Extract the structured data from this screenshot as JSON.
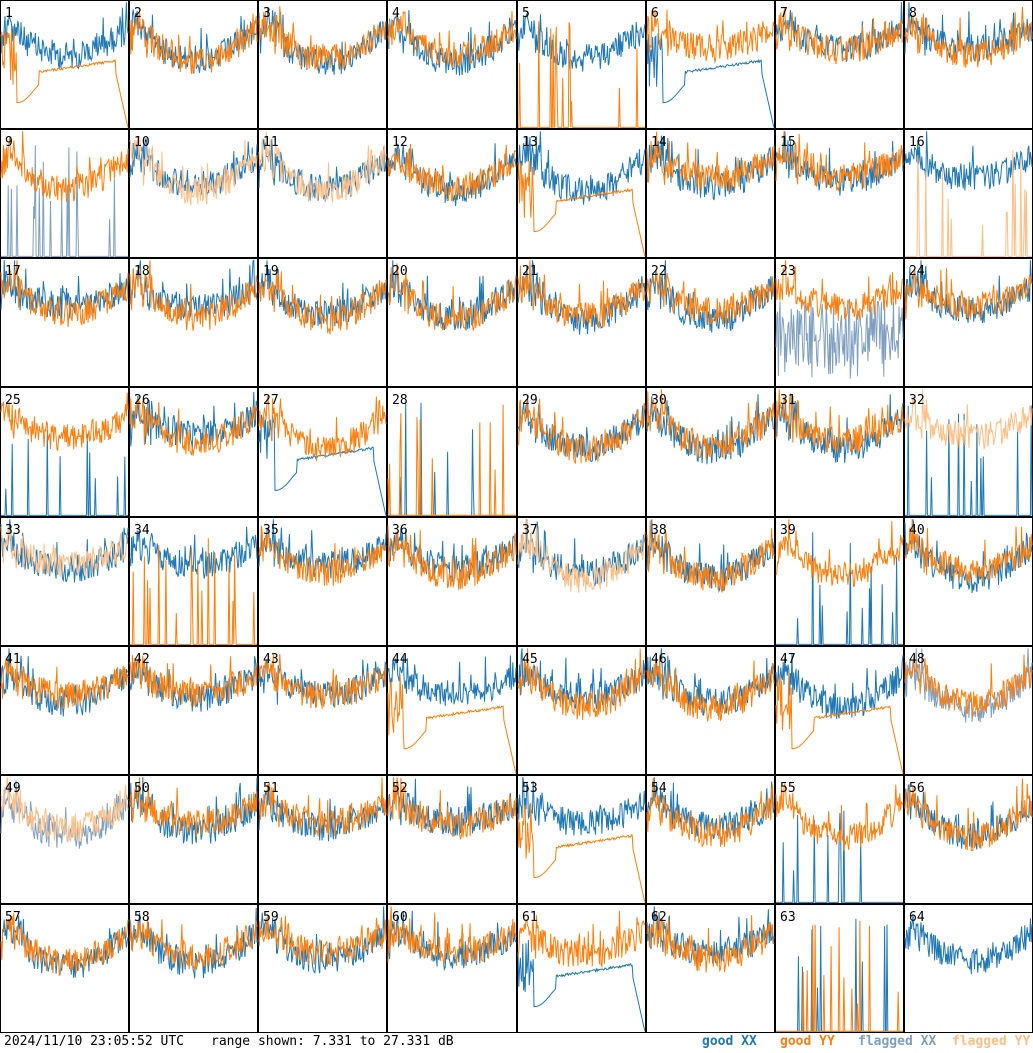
{
  "chart_data": {
    "type": "line",
    "panel_count": 64,
    "panel_labels": [
      "1",
      "2",
      "3",
      "4",
      "5",
      "6",
      "7",
      "8",
      "9",
      "10",
      "11",
      "12",
      "13",
      "14",
      "15",
      "16",
      "17",
      "18",
      "19",
      "20",
      "21",
      "22",
      "23",
      "24",
      "25",
      "26",
      "27",
      "28",
      "29",
      "30",
      "31",
      "32",
      "33",
      "34",
      "35",
      "36",
      "37",
      "38",
      "39",
      "40",
      "41",
      "42",
      "43",
      "44",
      "45",
      "46",
      "47",
      "48",
      "49",
      "50",
      "51",
      "52",
      "53",
      "54",
      "55",
      "56",
      "57",
      "58",
      "59",
      "60",
      "61",
      "62",
      "63",
      "64"
    ],
    "ylim": [
      7.331,
      27.331
    ],
    "series": [
      {
        "name": "good XX",
        "color": "#1f77b4"
      },
      {
        "name": "good YY",
        "color": "#ff7f0e"
      },
      {
        "name": "flagged XX",
        "color": "#7f9fbf"
      },
      {
        "name": "flagged YY",
        "color": "#ffbf87"
      }
    ],
    "panels": {
      "1": {
        "xx": "normal",
        "yy": "dip"
      },
      "5": {
        "xx": "normal",
        "yy": "spikes"
      },
      "6": {
        "xx": "dip",
        "yy": "normal"
      },
      "9": {
        "xx": "spikes_flagged",
        "yy": "normal"
      },
      "10": {
        "xx": "normal",
        "yy": "flagged"
      },
      "11": {
        "xx": "normal",
        "yy": "flagged"
      },
      "13": {
        "xx": "normal",
        "yy": "dip"
      },
      "16": {
        "xx": "normal",
        "yy": "spikes_flagged"
      },
      "23": {
        "xx": "noisy_flagged",
        "yy": "normal"
      },
      "25": {
        "xx": "spikes",
        "yy": "normal"
      },
      "27": {
        "xx": "dip",
        "yy": "normal"
      },
      "28": {
        "xx": "spikes",
        "yy": "spikes"
      },
      "32": {
        "xx": "spikes",
        "yy": "flagged"
      },
      "33": {
        "xx": "normal",
        "yy": "flagged"
      },
      "34": {
        "xx": "normal",
        "yy": "spikes"
      },
      "37": {
        "xx": "normal",
        "yy": "flagged"
      },
      "39": {
        "xx": "spikes",
        "yy": "normal"
      },
      "44": {
        "xx": "normal",
        "yy": "dip"
      },
      "47": {
        "xx": "normal",
        "yy": "dip"
      },
      "48": {
        "xx": "flagged",
        "yy": "normal"
      },
      "49": {
        "xx": "flagged",
        "yy": "flagged"
      },
      "53": {
        "xx": "normal",
        "yy": "dip"
      },
      "55": {
        "xx": "spikes",
        "yy": "normal"
      },
      "61": {
        "xx": "dip",
        "yy": "normal"
      },
      "63": {
        "xx": "spikes",
        "yy": "spikes"
      },
      "64": {
        "xx": "normal",
        "yy": "none"
      }
    }
  },
  "footer": {
    "timestamp": "2024/11/10 23:05:52 UTC",
    "range": "range shown: 7.331 to 27.331 dB"
  },
  "legend": {
    "good_xx": "good XX",
    "good_yy": "good YY",
    "flagged_xx": "flagged XX",
    "flagged_yy": "flagged YY"
  }
}
